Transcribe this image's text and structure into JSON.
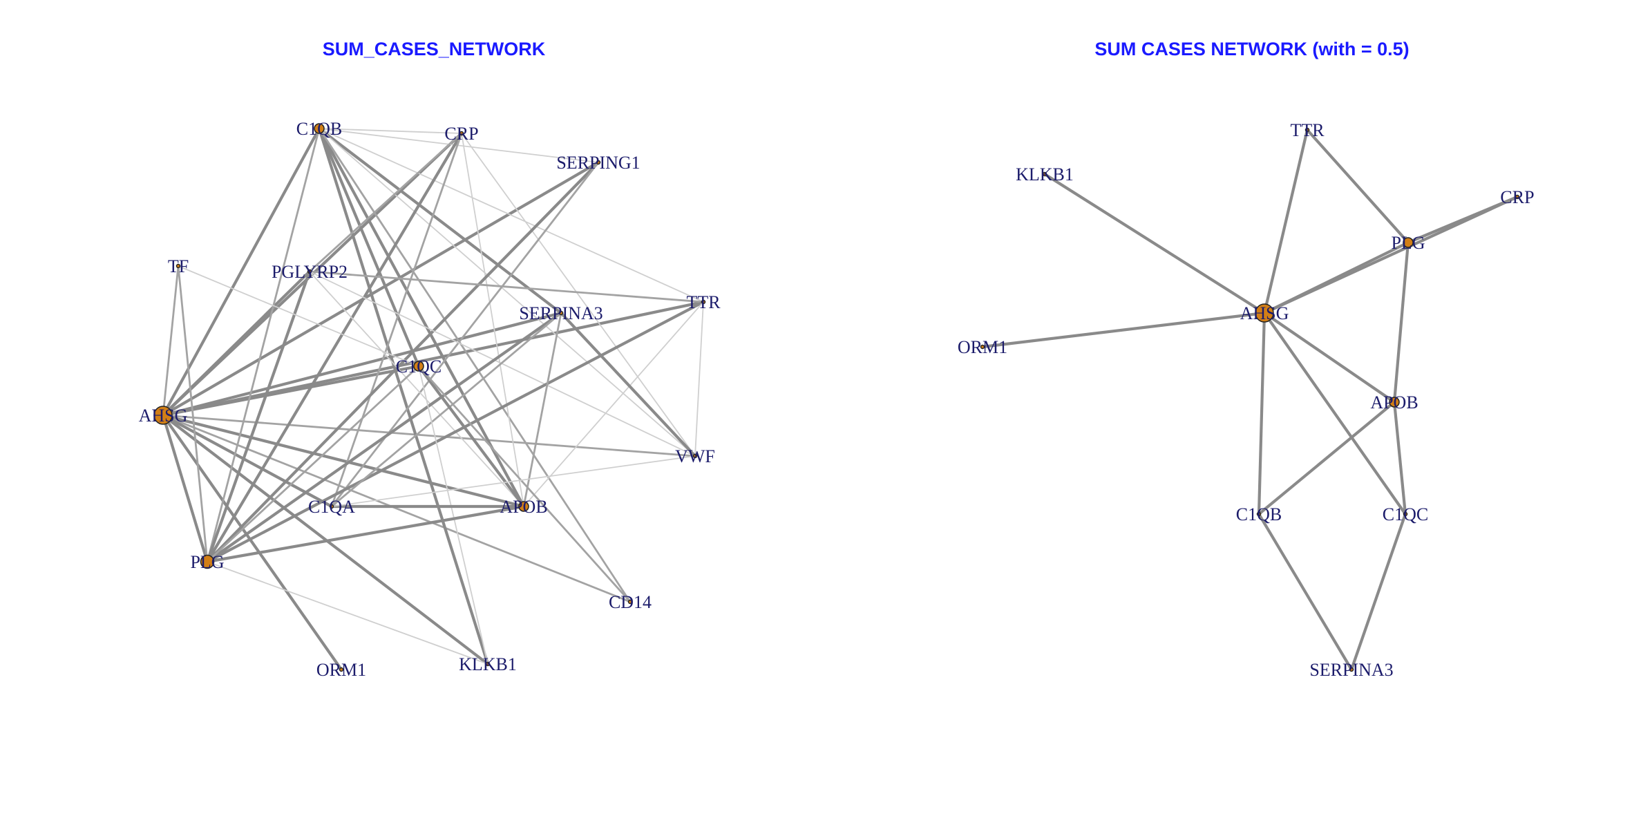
{
  "colors": {
    "title": "#1a1aff",
    "label": "#1c1c6b",
    "node_fill": "#d27f16",
    "node_stroke": "#222222",
    "edge_strong": "#8a8a8a",
    "edge_medium": "#a3a3a3",
    "edge_weak": "#cfcfcf"
  },
  "panels": [
    {
      "id": "left",
      "title": "SUM_CASES_NETWORK",
      "nodes": [
        {
          "id": "C1QB",
          "label": "C1QB",
          "size": "small"
        },
        {
          "id": "CRP",
          "label": "CRP",
          "size": "tiny"
        },
        {
          "id": "SERPING1",
          "label": "SERPING1",
          "size": "tiny"
        },
        {
          "id": "TF",
          "label": "TF",
          "size": "tiny"
        },
        {
          "id": "PGLYRP2",
          "label": "PGLYRP2",
          "size": "tiny"
        },
        {
          "id": "TTR",
          "label": "TTR",
          "size": "tiny"
        },
        {
          "id": "SERPINA3",
          "label": "SERPINA3",
          "size": "tiny"
        },
        {
          "id": "C1QC",
          "label": "C1QC",
          "size": "small"
        },
        {
          "id": "AHSG",
          "label": "AHSG",
          "size": "large"
        },
        {
          "id": "VWF",
          "label": "VWF",
          "size": "tiny"
        },
        {
          "id": "C1QA",
          "label": "C1QA",
          "size": "tiny"
        },
        {
          "id": "APOB",
          "label": "APOB",
          "size": "small"
        },
        {
          "id": "PLG",
          "label": "PLG",
          "size": "medium"
        },
        {
          "id": "CD14",
          "label": "CD14",
          "size": "tiny"
        },
        {
          "id": "ORM1",
          "label": "ORM1",
          "size": "tiny"
        },
        {
          "id": "KLKB1",
          "label": "KLKB1",
          "size": "tiny"
        }
      ],
      "edges": [
        [
          "AHSG",
          "C1QB",
          "strong"
        ],
        [
          "AHSG",
          "CRP",
          "strong"
        ],
        [
          "AHSG",
          "SERPING1",
          "strong"
        ],
        [
          "AHSG",
          "SERPINA3",
          "strong"
        ],
        [
          "AHSG",
          "C1QC",
          "strong"
        ],
        [
          "AHSG",
          "TTR",
          "strong"
        ],
        [
          "AHSG",
          "VWF",
          "medium"
        ],
        [
          "AHSG",
          "APOB",
          "strong"
        ],
        [
          "AHSG",
          "PLG",
          "strong"
        ],
        [
          "AHSG",
          "CD14",
          "medium"
        ],
        [
          "AHSG",
          "ORM1",
          "strong"
        ],
        [
          "AHSG",
          "KLKB1",
          "strong"
        ],
        [
          "AHSG",
          "C1QA",
          "strong"
        ],
        [
          "AHSG",
          "TF",
          "medium"
        ],
        [
          "AHSG",
          "PGLYRP2",
          "strong"
        ],
        [
          "C1QB",
          "CRP",
          "weak"
        ],
        [
          "C1QB",
          "SERPINA3",
          "strong"
        ],
        [
          "C1QB",
          "C1QC",
          "strong"
        ],
        [
          "C1QB",
          "APOB",
          "strong"
        ],
        [
          "C1QB",
          "KLKB1",
          "strong"
        ],
        [
          "C1QB",
          "PLG",
          "medium"
        ],
        [
          "C1QB",
          "VWF",
          "weak"
        ],
        [
          "C1QB",
          "CD14",
          "medium"
        ],
        [
          "C1QB",
          "TTR",
          "weak"
        ],
        [
          "C1QB",
          "SERPING1",
          "weak"
        ],
        [
          "CRP",
          "PLG",
          "strong"
        ],
        [
          "CRP",
          "C1QA",
          "medium"
        ],
        [
          "CRP",
          "APOB",
          "weak"
        ],
        [
          "CRP",
          "VWF",
          "weak"
        ],
        [
          "CRP",
          "PGLYRP2",
          "medium"
        ],
        [
          "SERPING1",
          "PLG",
          "strong"
        ],
        [
          "SERPING1",
          "C1QA",
          "medium"
        ],
        [
          "PGLYRP2",
          "TTR",
          "medium"
        ],
        [
          "PGLYRP2",
          "PLG",
          "strong"
        ],
        [
          "PGLYRP2",
          "VWF",
          "weak"
        ],
        [
          "PGLYRP2",
          "APOB",
          "weak"
        ],
        [
          "TF",
          "PLG",
          "medium"
        ],
        [
          "TF",
          "C1QC",
          "weak"
        ],
        [
          "TTR",
          "PLG",
          "strong"
        ],
        [
          "TTR",
          "APOB",
          "weak"
        ],
        [
          "TTR",
          "VWF",
          "weak"
        ],
        [
          "SERPINA3",
          "VWF",
          "strong"
        ],
        [
          "SERPINA3",
          "PLG",
          "strong"
        ],
        [
          "SERPINA3",
          "APOB",
          "medium"
        ],
        [
          "SERPINA3",
          "C1QA",
          "medium"
        ],
        [
          "C1QC",
          "APOB",
          "strong"
        ],
        [
          "C1QC",
          "PLG",
          "medium"
        ],
        [
          "C1QC",
          "KLKB1",
          "weak"
        ],
        [
          "C1QC",
          "CD14",
          "medium"
        ],
        [
          "APOB",
          "PLG",
          "strong"
        ],
        [
          "APOB",
          "C1QA",
          "strong"
        ],
        [
          "VWF",
          "C1QA",
          "weak"
        ],
        [
          "PLG",
          "KLKB1",
          "weak"
        ]
      ]
    },
    {
      "id": "right",
      "title": "SUM CASES NETWORK (with = 0.5)",
      "nodes": [
        {
          "id": "TTR",
          "label": "TTR",
          "size": "tiny"
        },
        {
          "id": "KLKB1",
          "label": "KLKB1",
          "size": "tiny"
        },
        {
          "id": "CRP",
          "label": "CRP",
          "size": "tiny"
        },
        {
          "id": "PLG",
          "label": "PLG",
          "size": "small"
        },
        {
          "id": "AHSG",
          "label": "AHSG",
          "size": "large"
        },
        {
          "id": "ORM1",
          "label": "ORM1",
          "size": "tiny"
        },
        {
          "id": "APOB",
          "label": "APOB",
          "size": "small"
        },
        {
          "id": "C1QB",
          "label": "C1QB",
          "size": "tiny"
        },
        {
          "id": "C1QC",
          "label": "C1QC",
          "size": "tiny"
        },
        {
          "id": "SERPINA3",
          "label": "SERPINA3",
          "size": "tiny"
        }
      ],
      "edges": [
        [
          "TTR",
          "AHSG",
          "strong"
        ],
        [
          "TTR",
          "PLG",
          "strong"
        ],
        [
          "KLKB1",
          "AHSG",
          "strong"
        ],
        [
          "CRP",
          "PLG",
          "strong"
        ],
        [
          "CRP",
          "AHSG",
          "strong"
        ],
        [
          "PLG",
          "AHSG",
          "strong"
        ],
        [
          "PLG",
          "APOB",
          "strong"
        ],
        [
          "ORM1",
          "AHSG",
          "strong"
        ],
        [
          "AHSG",
          "APOB",
          "strong"
        ],
        [
          "AHSG",
          "C1QB",
          "strong"
        ],
        [
          "AHSG",
          "C1QC",
          "strong"
        ],
        [
          "APOB",
          "C1QB",
          "strong"
        ],
        [
          "APOB",
          "C1QC",
          "strong"
        ],
        [
          "C1QB",
          "SERPINA3",
          "strong"
        ],
        [
          "C1QC",
          "SERPINA3",
          "strong"
        ]
      ]
    }
  ]
}
